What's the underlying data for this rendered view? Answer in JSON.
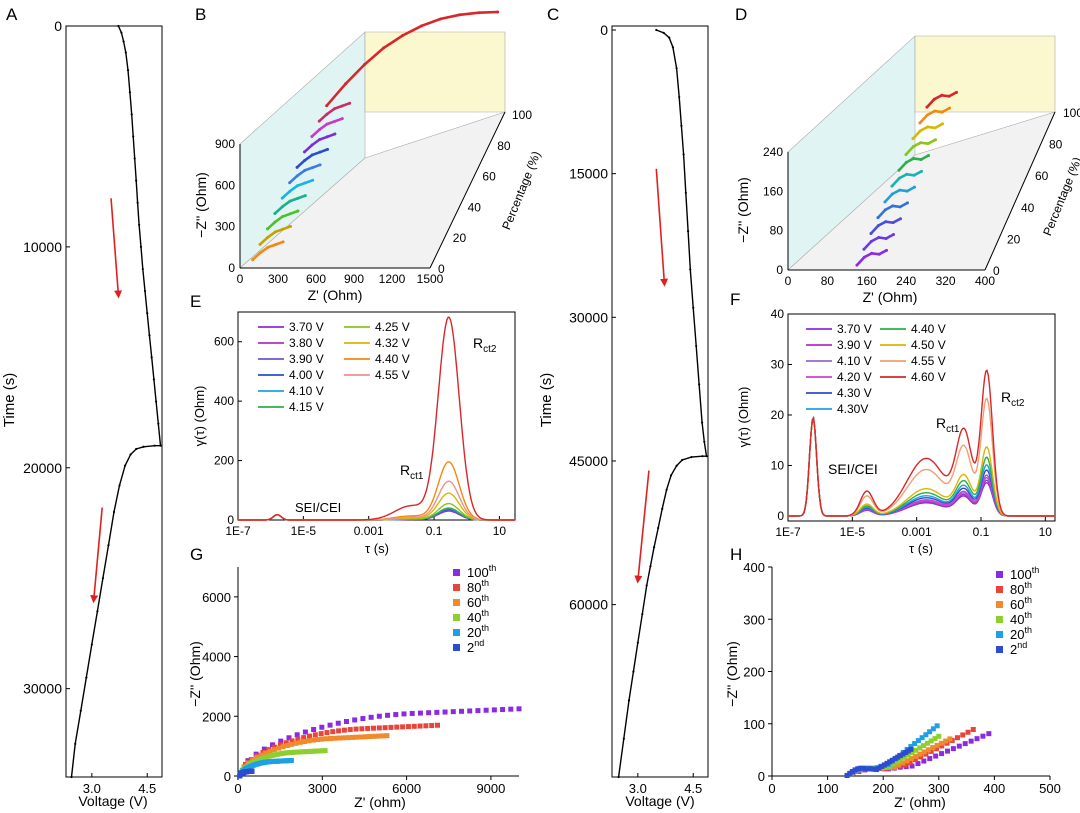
{
  "panels": {
    "A": {
      "letter": "A",
      "xlabel": "Voltage (V)",
      "ylabel": "Time (s)",
      "xticks": [
        "3.0",
        "4.5"
      ],
      "yticks": [
        0,
        10000,
        20000,
        30000
      ]
    },
    "B": {
      "letter": "B",
      "xlabel": "Z' (Ohm)",
      "ylabel": "−Z'' (Ohm)",
      "zlabel": "Percentage (%)",
      "xticks": [
        0,
        300,
        600,
        900,
        1200,
        1500
      ],
      "yticks": [
        0,
        300,
        600,
        900
      ],
      "pticks": [
        0,
        20,
        40,
        60,
        80,
        100
      ]
    },
    "C": {
      "letter": "C",
      "xlabel": "Voltage (V)",
      "ylabel": "Time (s)",
      "xticks": [
        "3.0",
        "4.5"
      ],
      "yticks": [
        0,
        15000,
        30000,
        45000,
        60000
      ]
    },
    "D": {
      "letter": "D",
      "xlabel": "Z' (Ohm)",
      "ylabel": "−Z'' (Ohm)",
      "zlabel": "Percentage (%)",
      "xticks": [
        0,
        80,
        160,
        240,
        320,
        400
      ],
      "yticks": [
        0,
        80,
        160,
        240
      ],
      "pticks": [
        0,
        20,
        40,
        60,
        80,
        100
      ]
    },
    "E": {
      "letter": "E",
      "xlabel": "τ (s)",
      "ylabel": "γ(τ) (Ohm)",
      "xticks": [
        "1E-7",
        "1E-5",
        "0.001",
        "0.1",
        "10"
      ],
      "yticks": [
        0,
        200,
        400,
        600
      ],
      "ann_sei": "SEI/CEI",
      "ann_r1": "R",
      "ann_r1_sub": "ct1",
      "ann_r2": "R",
      "ann_r2_sub": "ct2"
    },
    "F": {
      "letter": "F",
      "xlabel": "τ (s)",
      "ylabel": "γ(τ) (Ohm)",
      "xticks": [
        "1E-7",
        "1E-5",
        "0.001",
        "0.1",
        "10"
      ],
      "yticks": [
        0,
        10,
        20,
        30,
        40
      ],
      "ann_sei": "SEI/CEI",
      "ann_r1": "R",
      "ann_r1_sub": "ct1",
      "ann_r2": "R",
      "ann_r2_sub": "ct2"
    },
    "G": {
      "letter": "G",
      "xlabel": "Z' (ohm)",
      "ylabel": "−Z'' (Ohm)",
      "xticks": [
        0,
        3000,
        6000,
        9000
      ],
      "yticks": [
        0,
        2000,
        4000,
        6000
      ]
    },
    "H": {
      "letter": "H",
      "xlabel": "Z' (ohm)",
      "ylabel": "−Z'' (Ohm)",
      "xticks": [
        0,
        100,
        200,
        300,
        400,
        500
      ],
      "yticks": [
        0,
        100,
        200,
        300,
        400
      ]
    }
  },
  "chart_data": [
    {
      "id": "A",
      "type": "line",
      "xlabel": "Voltage (V)",
      "ylabel": "Time (s)",
      "xlim": [
        2.3,
        4.9
      ],
      "ylim": [
        0,
        34000
      ],
      "y_inverted": true,
      "series": [
        {
          "color": "#000000",
          "x": [
            3.72,
            3.8,
            3.86,
            3.92,
            3.98,
            4.03,
            4.08,
            4.12,
            4.16,
            4.2,
            4.24,
            4.28,
            4.33,
            4.38,
            4.44,
            4.5,
            4.56,
            4.62,
            4.68,
            4.74,
            4.8,
            4.86,
            4.7,
            4.4,
            4.2,
            4.05,
            3.9,
            3.75,
            3.6,
            3.45,
            3.3,
            3.15,
            3.0,
            2.85,
            2.7,
            2.55,
            2.45
          ],
          "y": [
            0,
            300,
            700,
            1200,
            2000,
            3000,
            4000,
            5000,
            6000,
            7000,
            8000,
            9000,
            10000,
            11000,
            12000,
            13000,
            14000,
            15000,
            16000,
            17000,
            18000,
            19000,
            19000,
            19050,
            19150,
            19400,
            19900,
            20800,
            22000,
            23500,
            25000,
            26500,
            28000,
            29500,
            31000,
            32500,
            34000
          ]
        }
      ],
      "arrows": [
        {
          "from": [
            3.52,
            7800
          ],
          "to": [
            3.72,
            12200
          ]
        },
        {
          "from": [
            3.28,
            21800
          ],
          "to": [
            3.05,
            26000
          ]
        }
      ]
    },
    {
      "id": "C",
      "type": "line",
      "xlabel": "Voltage (V)",
      "ylabel": "Time (s)",
      "xlim": [
        2.3,
        4.9
      ],
      "ylim": [
        0,
        78000
      ],
      "y_inverted": true,
      "series": [
        {
          "color": "#000000",
          "x": [
            3.5,
            3.7,
            3.85,
            3.95,
            4.05,
            4.12,
            4.18,
            4.24,
            4.3,
            4.36,
            4.42,
            4.5,
            4.58,
            4.66,
            4.74,
            4.8,
            4.86,
            4.75,
            4.45,
            4.2,
            4.05,
            3.9,
            3.78,
            3.66,
            3.55,
            3.44,
            3.34,
            3.24,
            3.12,
            3.0,
            2.88,
            2.76,
            2.62,
            2.48
          ],
          "y": [
            0,
            300,
            800,
            1800,
            4000,
            7000,
            10000,
            13000,
            17000,
            21000,
            25000,
            29000,
            33000,
            37000,
            41000,
            43000,
            44500,
            44500,
            44600,
            44900,
            45500,
            46500,
            48000,
            50000,
            52000,
            54000,
            56000,
            58000,
            61000,
            64000,
            67000,
            70000,
            74000,
            78000
          ]
        }
      ],
      "arrows": [
        {
          "from": [
            3.5,
            14500
          ],
          "to": [
            3.72,
            26500
          ]
        },
        {
          "from": [
            3.3,
            46000
          ],
          "to": [
            3.0,
            57500
          ]
        }
      ]
    },
    {
      "id": "B",
      "type": "scatter",
      "xlabel": "Z' (Ohm)",
      "ylabel": "−Z'' (Ohm)",
      "zlabel": "Percentage (%)",
      "xlim": [
        0,
        1500
      ],
      "ylim": [
        0,
        900
      ],
      "plim": [
        0,
        100
      ],
      "series": [
        {
          "percentage": 0,
          "color": "#f08a10",
          "x": [
            100,
            160,
            220,
            280,
            340
          ],
          "y": [
            60,
            110,
            150,
            170,
            190
          ]
        },
        {
          "percentage": 10,
          "color": "#c8a000",
          "x": [
            100,
            160,
            220,
            280,
            340
          ],
          "y": [
            60,
            110,
            150,
            170,
            190
          ]
        },
        {
          "percentage": 20,
          "color": "#4fbf2a",
          "x": [
            100,
            160,
            220,
            280,
            340
          ],
          "y": [
            60,
            110,
            150,
            170,
            190
          ]
        },
        {
          "percentage": 30,
          "color": "#1ab08a",
          "x": [
            100,
            160,
            220,
            280,
            340
          ],
          "y": [
            60,
            110,
            150,
            170,
            190
          ]
        },
        {
          "percentage": 40,
          "color": "#15b5e6",
          "x": [
            100,
            160,
            220,
            280,
            340
          ],
          "y": [
            60,
            110,
            150,
            170,
            190
          ]
        },
        {
          "percentage": 50,
          "color": "#3e7de0",
          "x": [
            100,
            160,
            220,
            280,
            340
          ],
          "y": [
            60,
            110,
            150,
            170,
            190
          ]
        },
        {
          "percentage": 60,
          "color": "#2d4ccf",
          "x": [
            100,
            160,
            220,
            280,
            340
          ],
          "y": [
            60,
            110,
            150,
            170,
            190
          ]
        },
        {
          "percentage": 70,
          "color": "#7a2fd6",
          "x": [
            100,
            160,
            220,
            280,
            340
          ],
          "y": [
            60,
            110,
            150,
            170,
            190
          ]
        },
        {
          "percentage": 80,
          "color": "#c53cc7",
          "x": [
            100,
            160,
            220,
            280,
            340
          ],
          "y": [
            60,
            110,
            150,
            170,
            190
          ]
        },
        {
          "percentage": 90,
          "color": "#c92c6a",
          "x": [
            100,
            160,
            220,
            280,
            340
          ],
          "y": [
            60,
            110,
            150,
            170,
            190
          ]
        },
        {
          "percentage": 100,
          "color": "#d8262a",
          "x": [
            100,
            250,
            400,
            550,
            700,
            850,
            1000,
            1150,
            1300,
            1450
          ],
          "y": [
            60,
            220,
            360,
            480,
            570,
            640,
            690,
            720,
            735,
            740
          ]
        }
      ]
    },
    {
      "id": "D",
      "type": "scatter",
      "xlabel": "Z' (Ohm)",
      "ylabel": "−Z'' (Ohm)",
      "zlabel": "Percentage (%)",
      "xlim": [
        0,
        400
      ],
      "ylim": [
        0,
        240
      ],
      "plim": [
        0,
        100
      ],
      "series": [
        {
          "percentage": 0,
          "color": "#8a2be2",
          "x": [
            140,
            155,
            170,
            185,
            200
          ],
          "y": [
            10,
            26,
            34,
            32,
            40
          ]
        },
        {
          "percentage": 10,
          "color": "#6a3be0",
          "x": [
            140,
            155,
            170,
            185,
            200
          ],
          "y": [
            10,
            26,
            34,
            32,
            40
          ]
        },
        {
          "percentage": 20,
          "color": "#4b4fd8",
          "x": [
            140,
            155,
            170,
            185,
            200
          ],
          "y": [
            10,
            26,
            34,
            32,
            40
          ]
        },
        {
          "percentage": 30,
          "color": "#2f73d8",
          "x": [
            140,
            155,
            170,
            185,
            200
          ],
          "y": [
            10,
            26,
            34,
            32,
            40
          ]
        },
        {
          "percentage": 40,
          "color": "#1fa0d8",
          "x": [
            140,
            155,
            170,
            185,
            200
          ],
          "y": [
            10,
            26,
            34,
            32,
            40
          ]
        },
        {
          "percentage": 50,
          "color": "#18b5b0",
          "x": [
            140,
            155,
            170,
            185,
            200
          ],
          "y": [
            10,
            26,
            34,
            32,
            40
          ]
        },
        {
          "percentage": 60,
          "color": "#2bb04a",
          "x": [
            140,
            155,
            170,
            185,
            200
          ],
          "y": [
            10,
            26,
            34,
            32,
            40
          ]
        },
        {
          "percentage": 70,
          "color": "#8dc21f",
          "x": [
            140,
            155,
            170,
            185,
            200
          ],
          "y": [
            10,
            26,
            34,
            32,
            40
          ]
        },
        {
          "percentage": 80,
          "color": "#d9b800",
          "x": [
            140,
            155,
            170,
            185,
            200
          ],
          "y": [
            10,
            26,
            34,
            32,
            40
          ]
        },
        {
          "percentage": 90,
          "color": "#f08a10",
          "x": [
            140,
            155,
            170,
            185,
            200
          ],
          "y": [
            10,
            26,
            34,
            32,
            40
          ]
        },
        {
          "percentage": 100,
          "color": "#d8262a",
          "x": [
            140,
            155,
            170,
            185,
            200
          ],
          "y": [
            10,
            26,
            34,
            32,
            40
          ]
        }
      ]
    },
    {
      "id": "E",
      "type": "line",
      "xlabel": "τ (s)",
      "ylabel": "γ(τ) (Ohm)",
      "xscale": "log",
      "xlim": [
        1e-07,
        30
      ],
      "ylim": [
        0,
        700
      ],
      "series": [
        {
          "name": "3.70 V",
          "color": "#8a2be2",
          "peak": 30
        },
        {
          "name": "3.80 V",
          "color": "#b02fc8",
          "peak": 32
        },
        {
          "name": "3.90 V",
          "color": "#6e55d6",
          "peak": 34
        },
        {
          "name": "4.00 V",
          "color": "#2d4ccf",
          "peak": 36
        },
        {
          "name": "4.10 V",
          "color": "#1fa0e6",
          "peak": 38
        },
        {
          "name": "4.15 V",
          "color": "#2bb04a",
          "peak": 40
        },
        {
          "name": "4.25 V",
          "color": "#8dc21f",
          "peak": 55
        },
        {
          "name": "4.32 V",
          "color": "#d9b800",
          "peak": 90
        },
        {
          "name": "4.40 V",
          "color": "#f08a10",
          "peak": 195
        },
        {
          "name": "4.55 V",
          "color": "#f09090",
          "peak": 130
        },
        {
          "color": "#d8262a",
          "peak": 680
        }
      ]
    },
    {
      "id": "F",
      "type": "line",
      "xlabel": "τ (s)",
      "ylabel": "γ(τ) (Ohm)",
      "xscale": "log",
      "xlim": [
        1e-07,
        20
      ],
      "ylim": [
        -1,
        40
      ],
      "series": [
        {
          "name": "3.70 V",
          "color": "#8a2be2",
          "peak": 6.5
        },
        {
          "name": "3.90 V",
          "color": "#b02fc8",
          "peak": 7.0
        },
        {
          "name": "4.10 V",
          "color": "#9966cc",
          "peak": 7.5
        },
        {
          "name": "4.20 V",
          "color": "#d040c8",
          "peak": 8.0
        },
        {
          "name": "4.30 V",
          "color": "#2d4ccf",
          "peak": 9.0
        },
        {
          "name": "4.30V",
          "color": "#1fa0e6",
          "peak": 10.0
        },
        {
          "name": "4.40 V",
          "color": "#2bb04a",
          "peak": 11.5
        },
        {
          "name": "4.50 V",
          "color": "#d9b800",
          "peak": 13.5
        },
        {
          "name": "4.55 V",
          "color": "#f0a070",
          "peak": 23.0
        },
        {
          "name": "4.60 V",
          "color": "#d8262a",
          "peak": 28.5
        }
      ]
    },
    {
      "id": "G",
      "type": "scatter",
      "xlabel": "Z' (ohm)",
      "ylabel": "−Z'' (Ohm)",
      "xlim": [
        0,
        10000
      ],
      "ylim": [
        0,
        7000
      ],
      "series": [
        {
          "name": "100",
          "sup": "th",
          "color": "#8a2be2",
          "xmax": 10000,
          "ymax": 2250
        },
        {
          "name": "80",
          "sup": "th",
          "color": "#e8443a",
          "xmax": 7100,
          "ymax": 1700
        },
        {
          "name": "60",
          "sup": "th",
          "color": "#f08a2a",
          "xmax": 5300,
          "ymax": 1350
        },
        {
          "name": "40",
          "sup": "th",
          "color": "#8dcf2f",
          "xmax": 3100,
          "ymax": 850
        },
        {
          "name": "20",
          "sup": "th",
          "color": "#1fa0e6",
          "xmax": 1900,
          "ymax": 520
        },
        {
          "name": "2",
          "sup": "nd",
          "color": "#2d4ccf",
          "xmax": 500,
          "ymax": 160
        }
      ]
    },
    {
      "id": "H",
      "type": "scatter",
      "xlabel": "Z' (ohm)",
      "ylabel": "−Z'' (Ohm)",
      "xlim": [
        0,
        500
      ],
      "ylim": [
        0,
        400
      ],
      "series": [
        {
          "name": "100",
          "sup": "th",
          "color": "#8a2be2",
          "xmax": 390,
          "ymax": 85
        },
        {
          "name": "80",
          "sup": "th",
          "color": "#e8443a",
          "xmax": 362,
          "ymax": 93
        },
        {
          "name": "60",
          "sup": "th",
          "color": "#f08a2a",
          "xmax": 320,
          "ymax": 75
        },
        {
          "name": "40",
          "sup": "th",
          "color": "#8dcf2f",
          "xmax": 300,
          "ymax": 80
        },
        {
          "name": "20",
          "sup": "th",
          "color": "#1fa0e6",
          "xmax": 297,
          "ymax": 100
        },
        {
          "name": "2",
          "sup": "nd",
          "color": "#2d4ccf",
          "xmax": 250,
          "ymax": 55
        }
      ]
    }
  ]
}
